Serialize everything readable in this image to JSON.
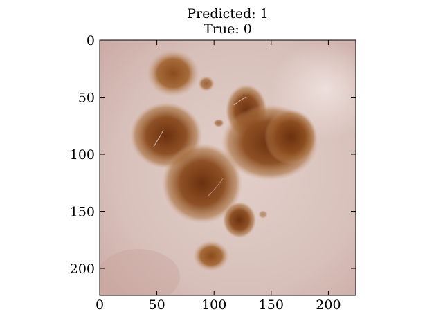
{
  "figure": {
    "title_lines": [
      "Predicted: 1",
      "True: 0"
    ],
    "image_description_icon": "skin-lesion-image",
    "x_axis": {
      "ticks": [
        0,
        50,
        100,
        150,
        200
      ],
      "range": [
        0,
        224
      ]
    },
    "y_axis": {
      "ticks": [
        0,
        50,
        100,
        150,
        200
      ],
      "range": [
        0,
        224
      ],
      "inverted": true
    }
  },
  "colors": {
    "skin_base": "#d9bfb9",
    "lesion_dark": "#6e3310",
    "lesion_mid": "#9a5a25"
  }
}
